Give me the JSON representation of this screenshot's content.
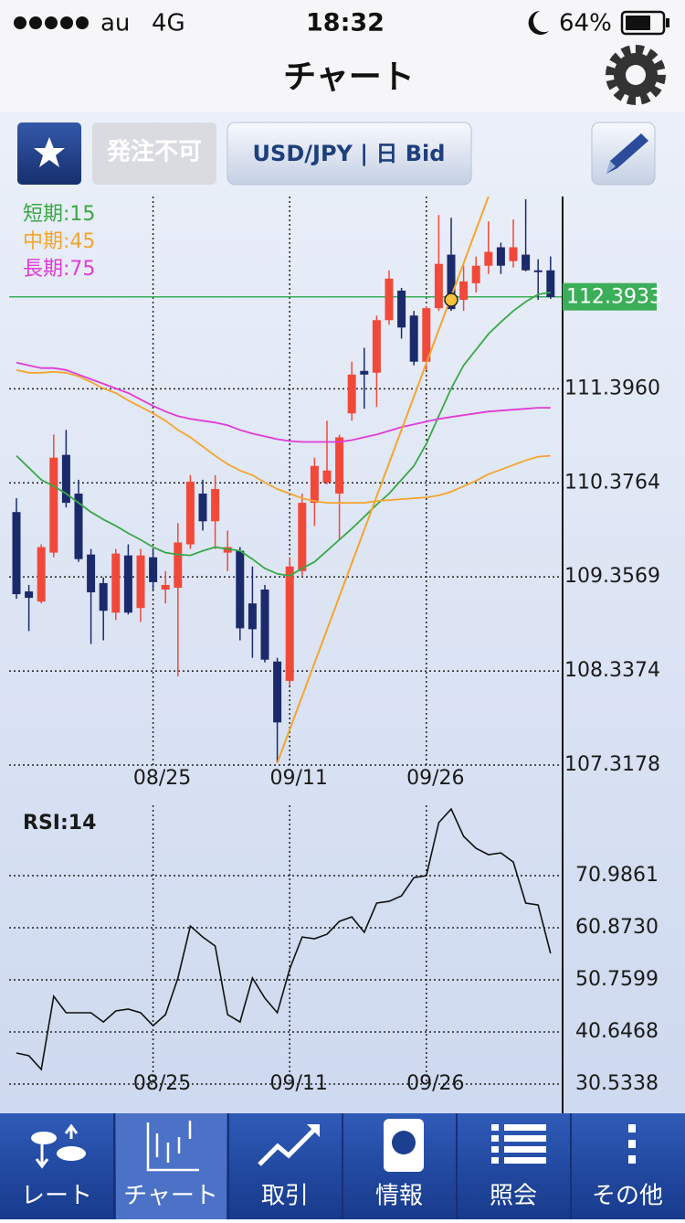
{
  "status_bar": {
    "carrier": "au",
    "network": "4G",
    "time": "18:32",
    "battery": "64%"
  },
  "nav": {
    "title": "チャート"
  },
  "toolbar": {
    "order_status": "発注不可",
    "symbol": "USD/JPY | 日 Bid"
  },
  "chart_data": [
    {
      "type": "candlestick",
      "categories": [
        null,
        null,
        null,
        null,
        null,
        null,
        null,
        null,
        null,
        null,
        null,
        "08/25",
        null,
        null,
        null,
        null,
        null,
        null,
        null,
        null,
        null,
        null,
        "09/11",
        null,
        null,
        null,
        null,
        null,
        null,
        null,
        null,
        null,
        null,
        "09/26",
        null,
        null,
        null,
        null,
        null,
        null,
        null,
        null,
        null,
        null
      ],
      "open": [
        110.06,
        109.2,
        109.09,
        109.62,
        110.68,
        110.26,
        109.6,
        109.29,
        108.97,
        109.59,
        109.02,
        109.57,
        109.22,
        109.24,
        109.71,
        110.26,
        109.96,
        109.62,
        109.64,
        109.07,
        109.22,
        108.44,
        108.23,
        109.42,
        110.16,
        110.38,
        110.26,
        111.13,
        111.59,
        111.57,
        112.14,
        112.46,
        112.19,
        111.69,
        112.27,
        112.85,
        112.36,
        112.54,
        112.73,
        112.93,
        112.78,
        112.85,
        112.68,
        112.68
      ],
      "high": [
        110.21,
        109.27,
        109.71,
        110.9,
        110.95,
        110.41,
        109.66,
        109.35,
        109.66,
        109.71,
        109.66,
        109.66,
        109.42,
        109.94,
        110.46,
        110.41,
        110.46,
        109.86,
        109.68,
        109.47,
        109.27,
        108.48,
        109.57,
        110.26,
        110.65,
        111.05,
        110.9,
        111.69,
        111.84,
        112.19,
        112.68,
        112.49,
        112.24,
        112.29,
        113.28,
        113.25,
        112.73,
        112.83,
        113.21,
        112.98,
        113.23,
        113.45,
        112.8,
        112.83
      ],
      "low": [
        109.12,
        108.77,
        109.07,
        109.57,
        110.11,
        109.52,
        108.63,
        108.67,
        108.89,
        108.95,
        108.87,
        109.22,
        109.07,
        108.28,
        109.66,
        109.86,
        109.66,
        109.42,
        108.67,
        108.48,
        108.43,
        107.34,
        108.18,
        109.37,
        109.91,
        110.36,
        109.76,
        111.05,
        111.18,
        111.2,
        112.09,
        111.94,
        111.65,
        111.6,
        112.24,
        112.24,
        112.24,
        112.44,
        112.64,
        112.64,
        112.71,
        112.67,
        112.36,
        112.37
      ],
      "close": [
        109.17,
        109.13,
        109.68,
        110.65,
        110.16,
        109.55,
        109.19,
        108.99,
        109.61,
        108.97,
        109.59,
        109.3,
        109.27,
        109.73,
        110.39,
        109.96,
        110.31,
        109.68,
        108.8,
        108.79,
        108.46,
        107.78,
        109.47,
        110.16,
        110.56,
        110.51,
        110.87,
        111.55,
        111.55,
        112.14,
        112.59,
        112.06,
        111.69,
        112.27,
        112.75,
        112.26,
        112.56,
        112.73,
        112.88,
        112.73,
        112.93,
        112.68,
        112.66,
        112.39
      ],
      "up_color": "#f0493a",
      "down_color": "#1b2a6b",
      "series": [
        {
          "name": "短期:15",
          "color": "#3aa845",
          "values": [
            110.67,
            110.54,
            110.41,
            110.34,
            110.26,
            110.16,
            110.06,
            109.98,
            109.91,
            109.83,
            109.76,
            109.68,
            109.62,
            109.6,
            109.59,
            109.64,
            109.68,
            109.66,
            109.64,
            109.55,
            109.45,
            109.39,
            109.37,
            109.45,
            109.52,
            109.64,
            109.76,
            109.88,
            110.01,
            110.14,
            110.26,
            110.41,
            110.56,
            110.8,
            111.1,
            111.4,
            111.65,
            111.82,
            111.99,
            112.12,
            112.24,
            112.34,
            112.42,
            112.44
          ]
        },
        {
          "name": "中期:45",
          "color": "#f4a52e",
          "values": [
            111.6,
            111.57,
            111.57,
            111.58,
            111.57,
            111.53,
            111.47,
            111.4,
            111.35,
            111.27,
            111.2,
            111.13,
            111.05,
            110.95,
            110.87,
            110.77,
            110.67,
            110.58,
            110.51,
            110.46,
            110.38,
            110.31,
            110.26,
            110.21,
            110.18,
            110.16,
            110.16,
            110.16,
            110.16,
            110.18,
            110.19,
            110.2,
            110.21,
            110.22,
            110.24,
            110.28,
            110.34,
            110.4,
            110.47,
            110.52,
            110.57,
            110.62,
            110.66,
            110.67
          ]
        },
        {
          "name": "長期:75",
          "color": "#e03ad8",
          "values": [
            111.68,
            111.65,
            111.62,
            111.62,
            111.6,
            111.55,
            111.5,
            111.45,
            111.4,
            111.35,
            111.28,
            111.21,
            111.15,
            111.1,
            111.07,
            111.05,
            111.03,
            111.0,
            110.95,
            110.91,
            110.88,
            110.85,
            110.83,
            110.82,
            110.82,
            110.82,
            110.82,
            110.84,
            110.87,
            110.9,
            110.94,
            110.98,
            111.01,
            111.04,
            111.07,
            111.09,
            111.11,
            111.13,
            111.15,
            111.16,
            111.17,
            111.18,
            111.19,
            111.19
          ]
        }
      ],
      "trendline": {
        "color": "#f4a52e",
        "points": [
          [
            21,
            107.34
          ],
          [
            39,
            113.84
          ]
        ]
      },
      "marker": {
        "index": 35,
        "value": 112.36,
        "color": "#f4a52e"
      },
      "last_price": 112.3933,
      "last_price_color": "#3cae5a",
      "ylim": [
        107.3178,
        113.48
      ],
      "yticks": [
        {
          "value": 111.396,
          "label": "111.3960"
        },
        110.3764,
        109.3569,
        108.3374,
        107.3178
      ],
      "grid": true
    },
    {
      "type": "line",
      "title": "RSI:14",
      "categories": [
        null,
        null,
        null,
        null,
        null,
        null,
        null,
        null,
        null,
        null,
        null,
        "08/25",
        null,
        null,
        null,
        null,
        null,
        null,
        null,
        null,
        null,
        null,
        "09/11",
        null,
        null,
        null,
        null,
        null,
        null,
        null,
        null,
        null,
        null,
        "09/26",
        null,
        null,
        null,
        null,
        null,
        null,
        null,
        null,
        null,
        null
      ],
      "values": [
        36.56,
        36.03,
        33.37,
        47.56,
        44.37,
        44.37,
        44.37,
        42.59,
        44.72,
        45.08,
        44.37,
        41.88,
        44.01,
        51.11,
        61.22,
        59.09,
        57.32,
        44.01,
        42.59,
        51.11,
        47.21,
        44.37,
        52.88,
        59.09,
        58.74,
        59.62,
        62.11,
        62.99,
        59.98,
        65.66,
        66.01,
        67.07,
        70.62,
        70.98,
        81.27,
        83.93,
        78.61,
        76.3,
        75.06,
        75.41,
        73.64,
        65.66,
        65.3,
        55.9
      ],
      "color": "#111111",
      "ylim": [
        30.5338,
        84.65
      ],
      "yticks": [
        70.9861,
        {
          "value": 60.873,
          "label": "60.8730"
        },
        50.7599,
        40.6468,
        30.5338
      ],
      "grid": true
    }
  ],
  "tabs": [
    {
      "label": "レート"
    },
    {
      "label": "チャート"
    },
    {
      "label": "取引"
    },
    {
      "label": "情報"
    },
    {
      "label": "照会"
    },
    {
      "label": "その他"
    }
  ],
  "selected_tab": 1
}
